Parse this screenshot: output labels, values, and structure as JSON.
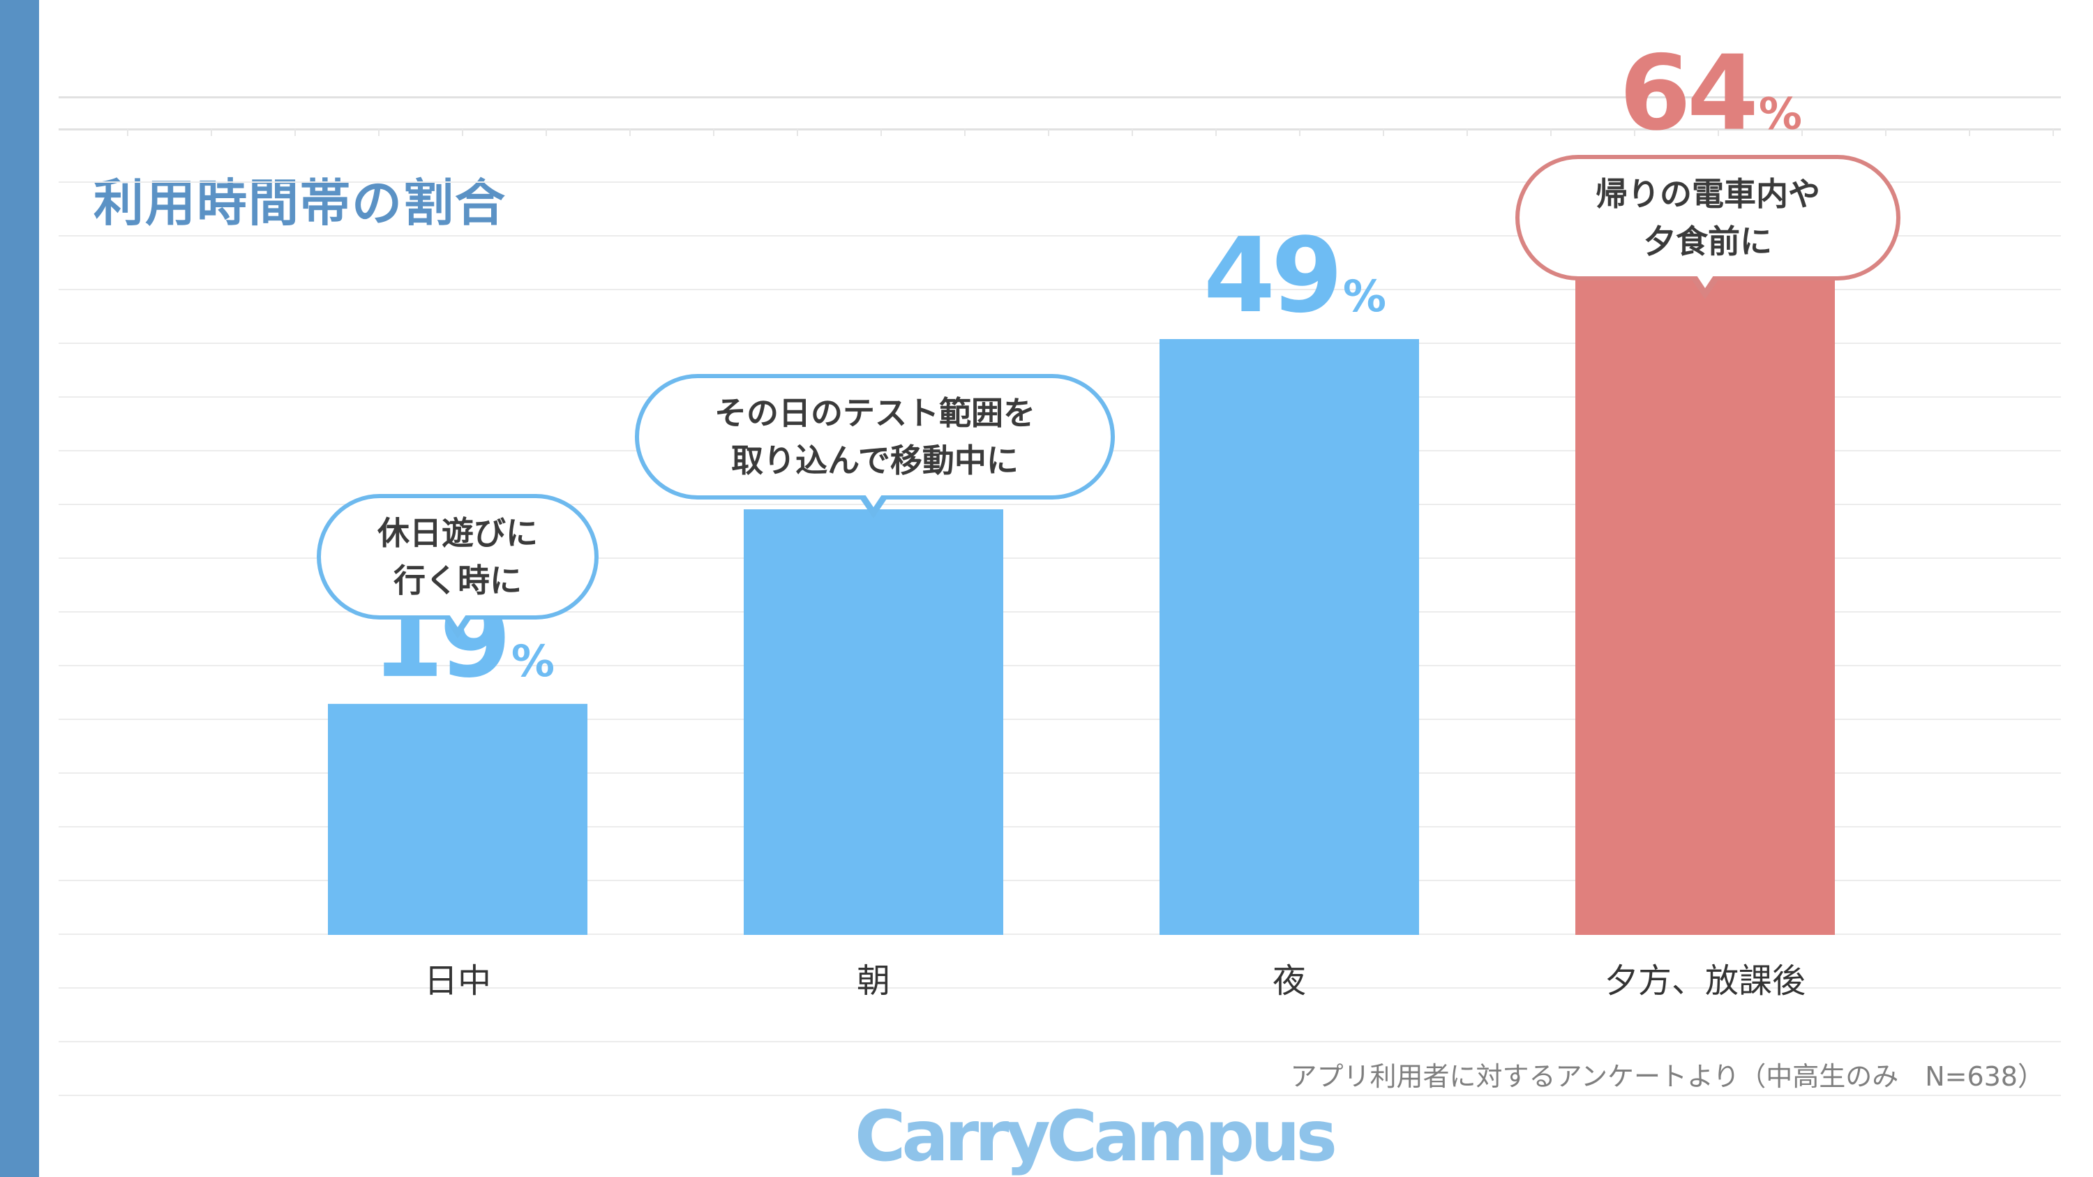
{
  "title": "利用時間帯の割合",
  "colors": {
    "band": "#5891c4",
    "bar_blue": "#6ebcf3",
    "bar_red": "#e0807d",
    "bubble_blue": "#6db9ee",
    "bubble_red": "#d98482"
  },
  "chart_data": {
    "type": "bar",
    "categories": [
      "日中",
      "朝",
      "夜",
      "夕方、放課後"
    ],
    "values": [
      19,
      35,
      49,
      64
    ],
    "value_suffix": "%",
    "ylim": [
      0,
      70
    ],
    "grid": true,
    "highlight_index": 3,
    "callouts": [
      {
        "index": 0,
        "lines": [
          "休日遊びに",
          "行く時に"
        ]
      },
      {
        "index": 1,
        "lines": [
          "その日のテスト範囲を",
          "取り込んで移動中に"
        ]
      },
      {
        "index": 3,
        "lines": [
          "帰りの電車内や",
          "夕食前に"
        ]
      }
    ]
  },
  "note": "アプリ利用者に対するアンケートより（中高生のみ　N=638）",
  "logo": "CarryCampus"
}
